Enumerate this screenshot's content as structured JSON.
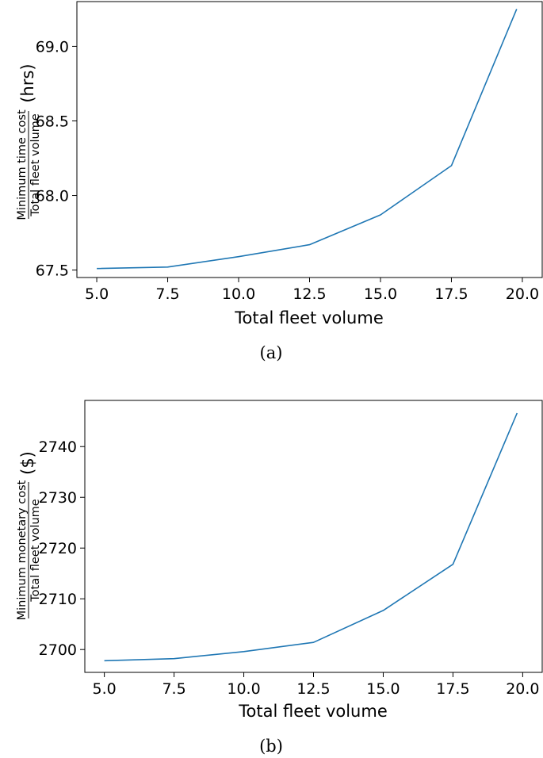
{
  "chart_data": [
    {
      "type": "line",
      "caption": "(a)",
      "xlabel": "Total fleet volume",
      "ylabel": {
        "numerator": "Minimum time cost",
        "denominator": "Total fleet volume",
        "unit": "(hrs)"
      },
      "xlim": [
        4.3,
        20.7
      ],
      "ylim": [
        67.45,
        69.3
      ],
      "xticks": [
        5.0,
        7.5,
        10.0,
        12.5,
        15.0,
        17.5,
        20.0
      ],
      "yticks": [
        67.5,
        68.0,
        68.5,
        69.0
      ],
      "tick_decimals": 1,
      "line_color": "#1f77b4",
      "grid": false,
      "series": [
        {
          "x": [
            5.0,
            7.5,
            10.0,
            12.5,
            15.0,
            17.5,
            19.8
          ],
          "y": [
            67.51,
            67.52,
            67.59,
            67.67,
            67.87,
            68.2,
            69.25
          ]
        }
      ]
    },
    {
      "type": "line",
      "caption": "(b)",
      "xlabel": "Total fleet volume",
      "ylabel": {
        "numerator": "Minimum monetary cost",
        "denominator": "Total fleet volume",
        "unit": "($)"
      },
      "xlim": [
        4.3,
        20.7
      ],
      "ylim": [
        2695.5,
        2749.1
      ],
      "xticks": [
        5.0,
        7.5,
        10.0,
        12.5,
        15.0,
        17.5,
        20.0
      ],
      "yticks": [
        2700,
        2710,
        2720,
        2730,
        2740
      ],
      "tick_decimals": 0,
      "line_color": "#1f77b4",
      "grid": false,
      "series": [
        {
          "x": [
            5.0,
            7.5,
            10.0,
            12.5,
            15.0,
            17.5,
            19.8
          ],
          "y": [
            2697.8,
            2698.2,
            2699.6,
            2701.4,
            2707.7,
            2716.8,
            2746.6
          ]
        }
      ]
    }
  ]
}
